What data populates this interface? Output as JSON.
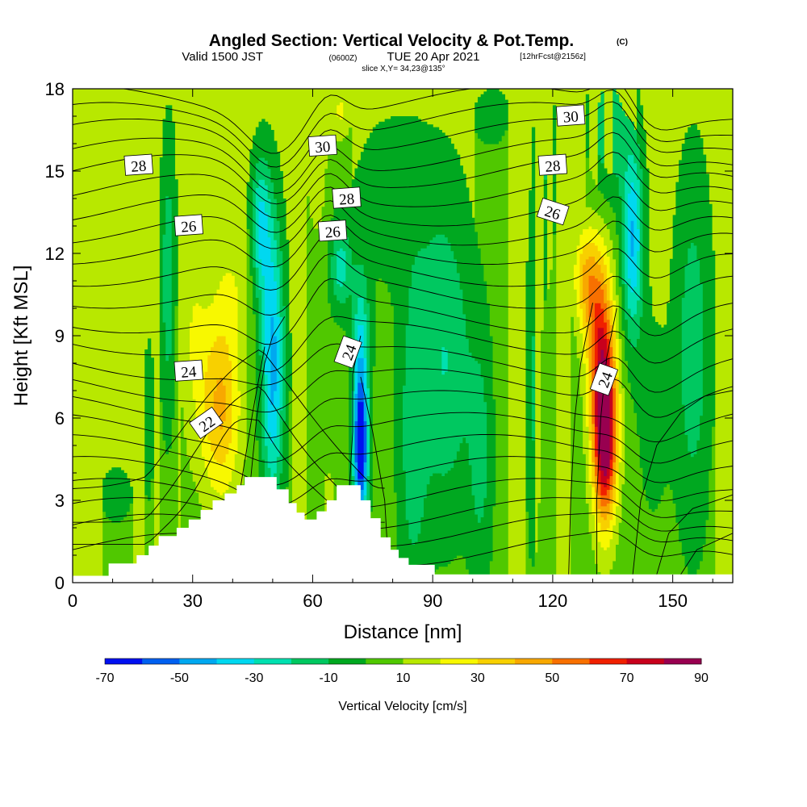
{
  "header": {
    "title_main": "Angled Section: Vertical Velocity & Pot.Temp.",
    "title_tag": "(C)",
    "valid_a": "Valid 1500 JST",
    "valid_b": "(0600Z)",
    "valid_c": "TUE 20 Apr 2021",
    "valid_d": "[12hrFcst@2156z]",
    "slice": "slice X,Y= 34,23@135°"
  },
  "chart_data": {
    "type": "heatmap",
    "xlabel": "Distance [nm]",
    "ylabel": "Height [Kft MSL]",
    "xlim": [
      0,
      165
    ],
    "ylim": [
      0,
      18
    ],
    "xticks": [
      "0",
      "30",
      "60",
      "90",
      "120",
      "150"
    ],
    "yticks": [
      "0",
      "3",
      "6",
      "9",
      "12",
      "15",
      "18"
    ],
    "colorbar": {
      "label": "Vertical Velocity [cm/s]",
      "tick_labels": [
        "-70",
        "-50",
        "-30",
        "-10",
        "10",
        "30",
        "50",
        "70",
        "90"
      ],
      "levels": [
        -70,
        -60,
        -50,
        -40,
        -30,
        -20,
        -10,
        0,
        10,
        20,
        30,
        40,
        50,
        60,
        70,
        80,
        90
      ],
      "colors": [
        "#0010f0",
        "#0060f0",
        "#00a8f0",
        "#00d8f0",
        "#00e0b0",
        "#00c860",
        "#00a820",
        "#50c800",
        "#b8e800",
        "#f8f800",
        "#f8d000",
        "#f8a800",
        "#f87000",
        "#f02000",
        "#c8001c",
        "#980050"
      ]
    },
    "contour_labels": [
      {
        "text": "30",
        "x": 62.5,
        "y": 15.9
      },
      {
        "text": "30",
        "x": 124.5,
        "y": 17.0
      },
      {
        "text": "28",
        "x": 16.5,
        "y": 15.2
      },
      {
        "text": "28",
        "x": 68.5,
        "y": 14.0
      },
      {
        "text": "28",
        "x": 120.0,
        "y": 15.2
      },
      {
        "text": "26",
        "x": 29.0,
        "y": 13.0
      },
      {
        "text": "26",
        "x": 65.0,
        "y": 12.8
      },
      {
        "text": "26",
        "x": 120.0,
        "y": 13.5
      },
      {
        "text": "24",
        "x": 29.0,
        "y": 7.7
      },
      {
        "text": "24",
        "x": 69.0,
        "y": 8.4
      },
      {
        "text": "24",
        "x": 133.0,
        "y": 7.4
      },
      {
        "text": "22",
        "x": 33.5,
        "y": 5.8
      }
    ]
  }
}
